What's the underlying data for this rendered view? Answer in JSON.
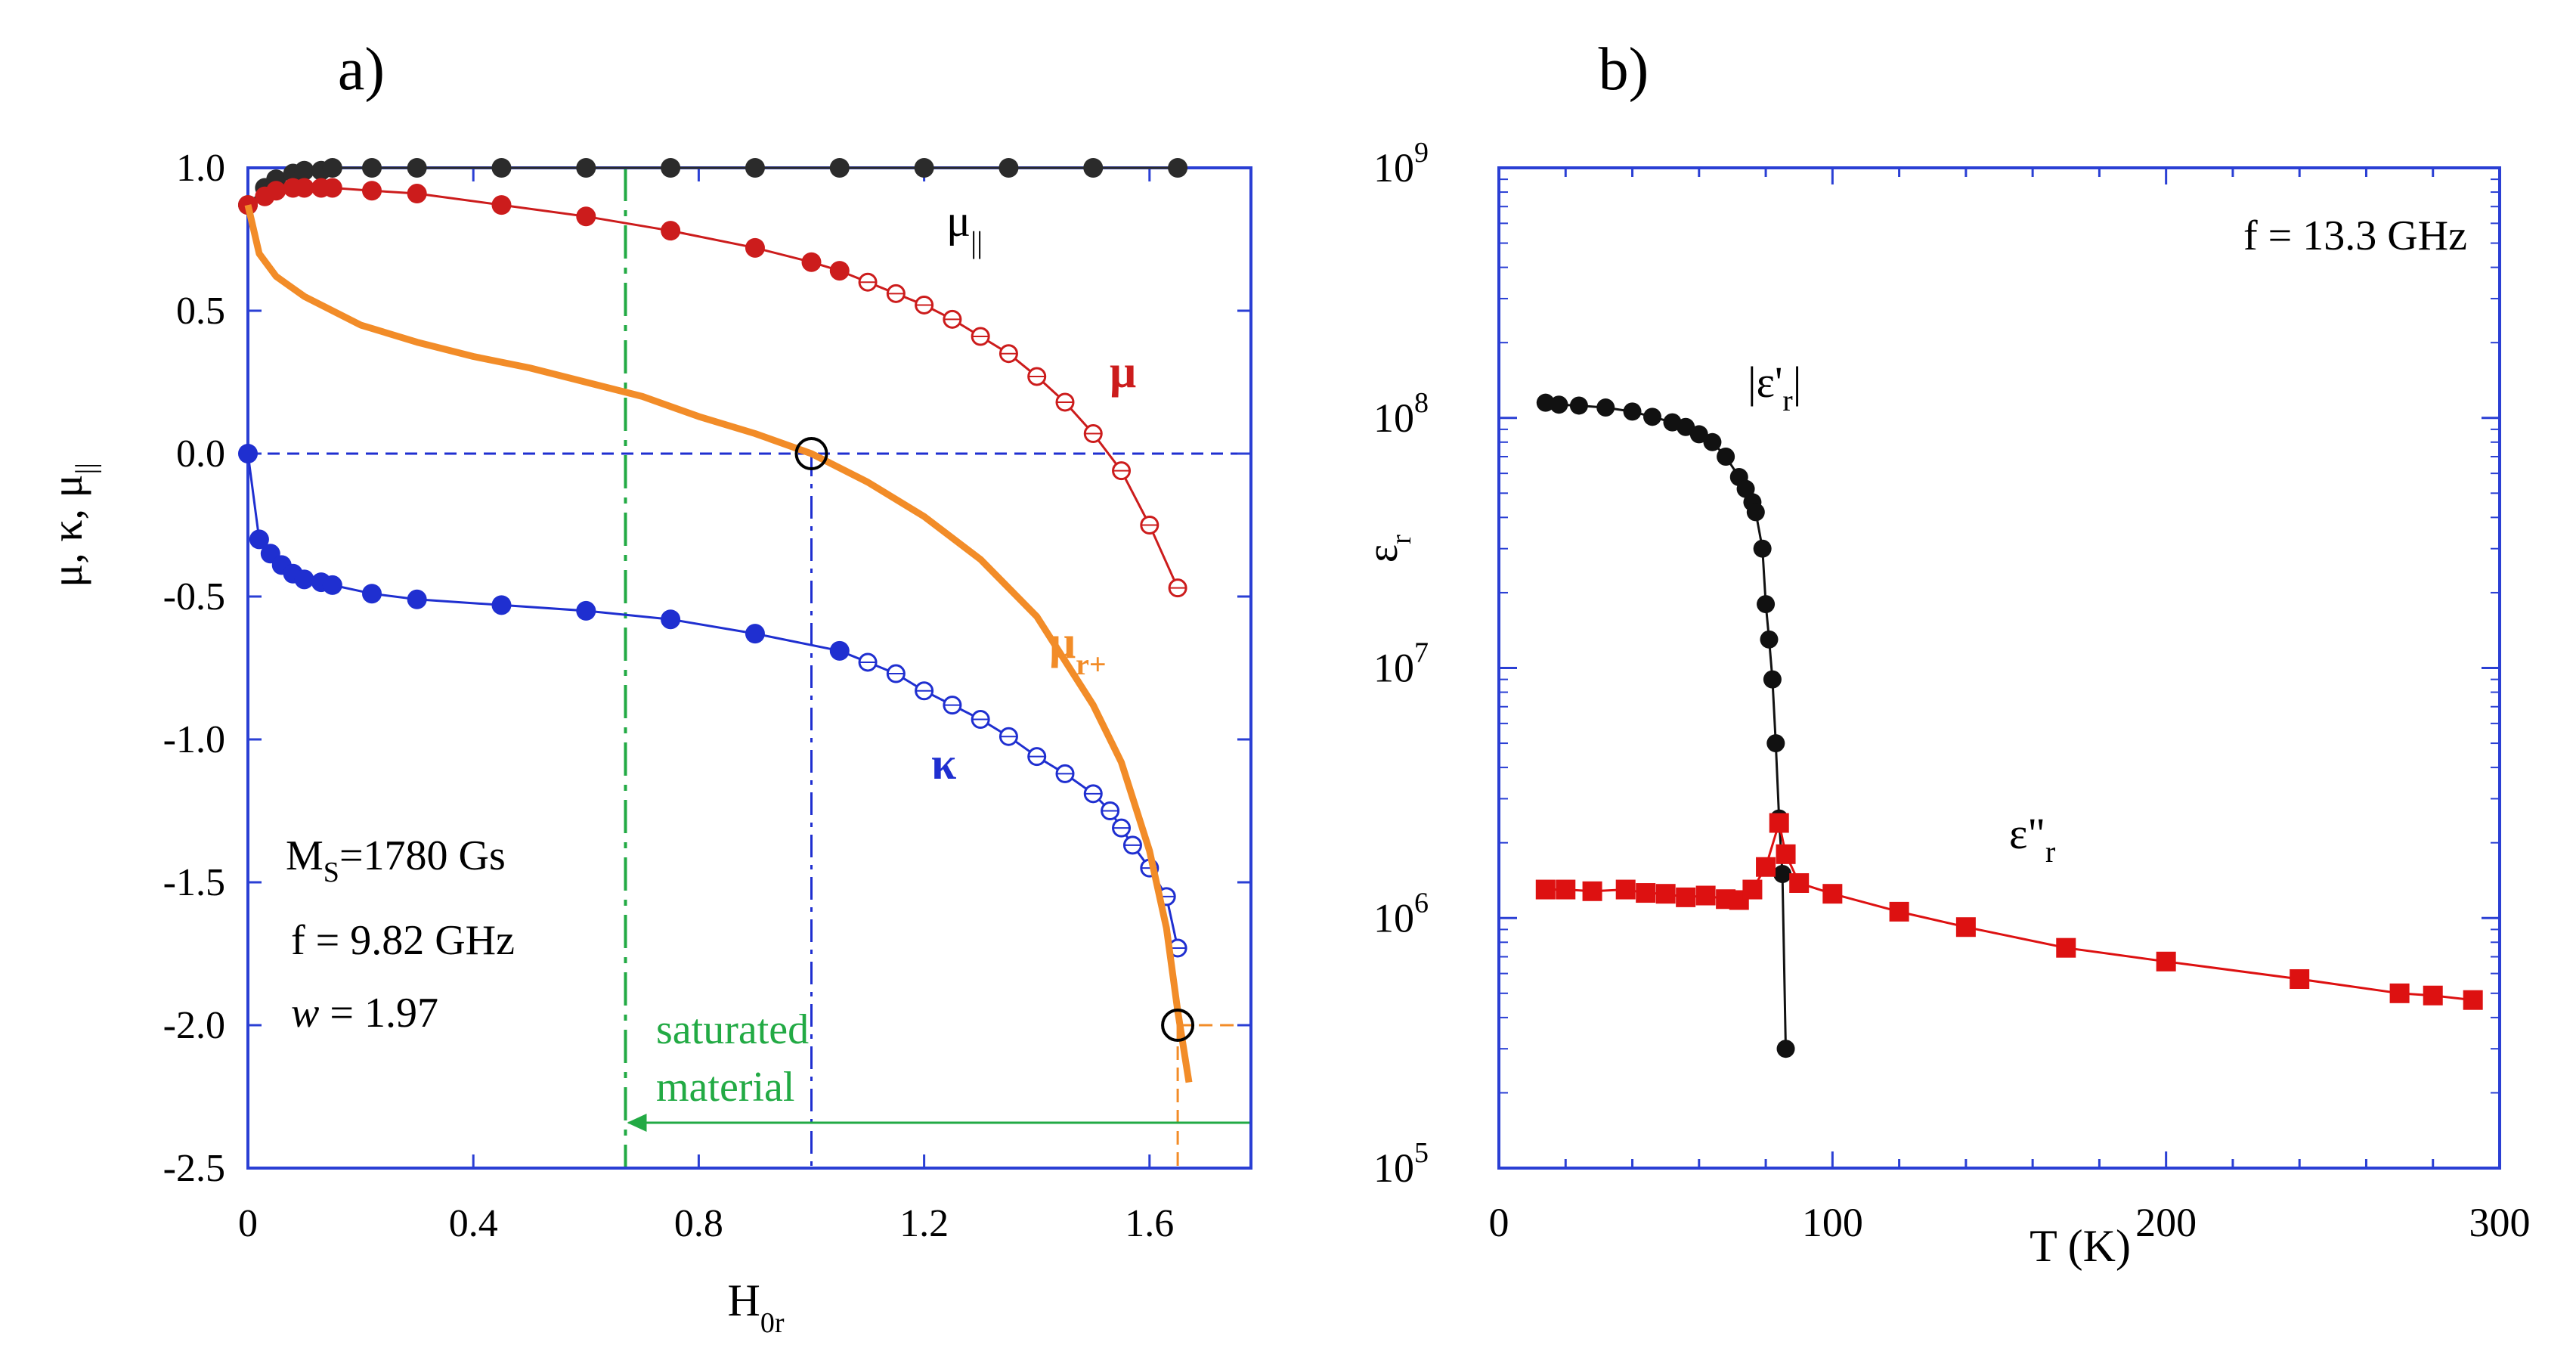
{
  "chart_data": [
    {
      "panel_label": "a)",
      "type": "scatter",
      "xlabel": {
        "main": "H",
        "sub": "0r"
      },
      "ylabel": "μ, κ, μ",
      "ylabel_sub": "||",
      "xlim": [
        0,
        1.78
      ],
      "ylim": [
        -2.5,
        1.0
      ],
      "xticks": [
        0,
        0.4,
        0.8,
        1.2,
        1.6
      ],
      "xtick_labels": [
        "0",
        "0.4",
        "0.8",
        "1.2",
        "1.6"
      ],
      "yticks": [
        1.0,
        0.5,
        0.0,
        -0.5,
        -1.0,
        -1.5,
        -2.0,
        -2.5
      ],
      "ytick_labels": [
        "1.0",
        "0.5",
        "0.0",
        "-0.5",
        "-1.0",
        "-1.5",
        "-2.0",
        "-2.5"
      ],
      "grid": false,
      "series": [
        {
          "name": "μ",
          "name_sub": "||",
          "color": "#2b2b2b",
          "x": [
            0,
            0.03,
            0.05,
            0.08,
            0.1,
            0.13,
            0.15,
            0.22,
            0.3,
            0.45,
            0.6,
            0.75,
            0.9,
            1.05,
            1.2,
            1.35,
            1.5,
            1.65
          ],
          "y": [
            0.87,
            0.93,
            0.96,
            0.98,
            0.99,
            0.99,
            1.0,
            1.0,
            1.0,
            1.0,
            1.0,
            1.0,
            1.0,
            1.0,
            1.0,
            1.0,
            1.0,
            1.0
          ]
        },
        {
          "name": "μ",
          "color": "#cc1c1c",
          "x": [
            0,
            0.03,
            0.05,
            0.08,
            0.1,
            0.13,
            0.15,
            0.22,
            0.3,
            0.45,
            0.6,
            0.75,
            0.9,
            1.0,
            1.05
          ],
          "y": [
            0.87,
            0.9,
            0.92,
            0.93,
            0.93,
            0.93,
            0.93,
            0.92,
            0.91,
            0.87,
            0.83,
            0.78,
            0.72,
            0.67,
            0.64
          ],
          "open_x": [
            1.1,
            1.15,
            1.2,
            1.25,
            1.3,
            1.35,
            1.4,
            1.45,
            1.5,
            1.55,
            1.6,
            1.65
          ],
          "open_y": [
            0.6,
            0.56,
            0.52,
            0.47,
            0.41,
            0.35,
            0.27,
            0.18,
            0.07,
            -0.06,
            -0.25,
            -0.47
          ]
        },
        {
          "name": "κ",
          "color": "#1f2fd0",
          "x": [
            0,
            0.02,
            0.04,
            0.06,
            0.08,
            0.1,
            0.13,
            0.15,
            0.22,
            0.3,
            0.45,
            0.6,
            0.75,
            0.9,
            1.05
          ],
          "y": [
            0.0,
            -0.3,
            -0.35,
            -0.39,
            -0.42,
            -0.44,
            -0.45,
            -0.46,
            -0.49,
            -0.51,
            -0.53,
            -0.55,
            -0.58,
            -0.63,
            -0.69
          ],
          "open_x": [
            1.1,
            1.15,
            1.2,
            1.25,
            1.3,
            1.35,
            1.4,
            1.45,
            1.5,
            1.53,
            1.55,
            1.57,
            1.6,
            1.63,
            1.65
          ],
          "open_y": [
            -0.73,
            -0.77,
            -0.83,
            -0.88,
            -0.93,
            -0.99,
            -1.06,
            -1.12,
            -1.19,
            -1.25,
            -1.31,
            -1.37,
            -1.45,
            -1.55,
            -1.73
          ]
        },
        {
          "name": "μ",
          "name_sub": "r+",
          "color": "#f28c28",
          "x": [
            0,
            0.02,
            0.05,
            0.1,
            0.2,
            0.3,
            0.4,
            0.5,
            0.6,
            0.7,
            0.8,
            0.9,
            1.0,
            1.1,
            1.2,
            1.3,
            1.4,
            1.5,
            1.55,
            1.6,
            1.63,
            1.65,
            1.67
          ],
          "y": [
            0.87,
            0.7,
            0.62,
            0.55,
            0.45,
            0.39,
            0.34,
            0.3,
            0.25,
            0.2,
            0.13,
            0.07,
            0.0,
            -0.1,
            -0.22,
            -0.37,
            -0.57,
            -0.88,
            -1.08,
            -1.39,
            -1.66,
            -1.95,
            -2.2
          ]
        }
      ],
      "reference_lines": {
        "zero_hline_y": 0.0,
        "vline_x": 1.0,
        "saturation_x": 0.67,
        "orange_vline_x": 1.65,
        "orange_hline_y": -2.0
      },
      "circled_points": [
        {
          "x": 1.0,
          "y": 0.0
        },
        {
          "x": 1.65,
          "y": -2.0
        }
      ],
      "annotations": {
        "saturated_line1": "saturated",
        "saturated_line2": "material",
        "ms_main": "M",
        "ms_sub": "S",
        "ms_value": "=1780 Gs",
        "f_text": "f =  9.82 GHz",
        "w_var": "w",
        "w_value": " = 1.97"
      }
    },
    {
      "panel_label": "b)",
      "type": "scatter",
      "xlabel": "T (K)",
      "ylabel": "ε",
      "ylabel_sub": "r",
      "xlim": [
        0,
        300
      ],
      "ylim": [
        100000,
        1000000000
      ],
      "log_y": true,
      "xticks": [
        0,
        100,
        200,
        300
      ],
      "xtick_labels": [
        "0",
        "100",
        "200",
        "300"
      ],
      "yticks": [
        100000,
        1000000,
        10000000,
        100000000,
        1000000000
      ],
      "ytick_labels": [
        {
          "base": "10",
          "exp": "5"
        },
        {
          "base": "10",
          "exp": "6"
        },
        {
          "base": "10",
          "exp": "7"
        },
        {
          "base": "10",
          "exp": "8"
        },
        {
          "base": "10",
          "exp": "9"
        }
      ],
      "grid": false,
      "series": [
        {
          "name": "|ε'",
          "name_sub": "r",
          "name_end": "|",
          "color": "#111111",
          "marker": "circle",
          "x": [
            14,
            18,
            24,
            32,
            40,
            46,
            52,
            56,
            60,
            64,
            68,
            72,
            74,
            76,
            77,
            79,
            80,
            81,
            82,
            83,
            84,
            85,
            86
          ],
          "y": [
            115000000,
            113000000,
            112000000,
            110000000,
            106000000,
            101000000,
            96000000,
            92000000,
            86000000,
            80000000,
            70000000,
            58000000,
            52000000,
            46000000,
            42000000,
            30000000,
            18000000,
            13000000,
            9000000,
            5000000,
            2500000,
            1500000,
            300000
          ]
        },
        {
          "name": "ε\"",
          "name_sub": "r",
          "color": "#dd1111",
          "marker": "square",
          "x": [
            14,
            20,
            28,
            38,
            44,
            50,
            56,
            62,
            68,
            72,
            76,
            80,
            84,
            86,
            90,
            100,
            120,
            140,
            170,
            200,
            240,
            270,
            280,
            292
          ],
          "y": [
            1300000,
            1300000,
            1280000,
            1300000,
            1260000,
            1250000,
            1210000,
            1230000,
            1190000,
            1180000,
            1300000,
            1600000,
            2400000,
            1800000,
            1380000,
            1250000,
            1060000,
            920000,
            760000,
            670000,
            570000,
            500000,
            490000,
            470000
          ]
        }
      ],
      "annotations": {
        "freq": "f = 13.3 GHz"
      }
    }
  ]
}
